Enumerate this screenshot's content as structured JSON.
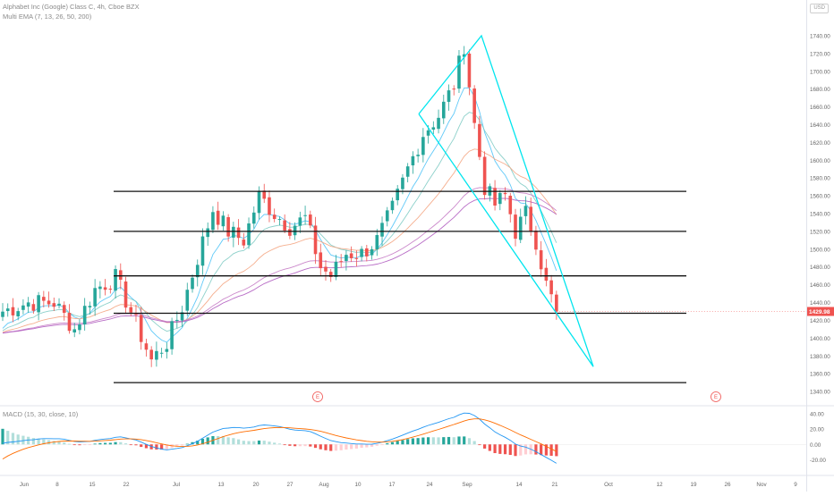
{
  "header": {
    "symbol_line": "Alphabet Inc (Google) Class C, 4h, Cboe BZX",
    "indicator_line": "Multi EMA (7, 13, 26, 50, 200)",
    "currency": "USD"
  },
  "macd_label": "MACD (15, 30, close, 10)",
  "last_price_label": "1429.98",
  "earnings_marker_label": "E",
  "colors": {
    "up": "#26a69a",
    "down": "#ef5350",
    "drawing": "#00e5ee",
    "ema7": "#4fc3f7",
    "ema13": "#80cbc4",
    "ema26": "#f4a582",
    "ema50": "#c57bc5",
    "ema200": "#b05cc0",
    "macd_line": "#2196f3",
    "signal_line": "#ff6d00"
  },
  "chart_data": [
    {
      "type": "candlestick",
      "title": "Alphabet Inc (Google) Class C, 4h, Cboe BZX",
      "y_axis_ticks": [
        1340,
        1360,
        1380,
        1400,
        1420,
        1440,
        1460,
        1480,
        1500,
        1520,
        1540,
        1560,
        1580,
        1600,
        1620,
        1640,
        1660,
        1680,
        1700,
        1720,
        1740
      ],
      "y_axis_tick_labels": [
        "1340.00",
        "1360.00",
        "1380.00",
        "1400.00",
        "1420.00",
        "1440.00",
        "1460.00",
        "1480.00",
        "1500.00",
        "1520.00",
        "1540.00",
        "1560.00",
        "1580.00",
        "1600.00",
        "1620.00",
        "1640.00",
        "1660.00",
        "1680.00",
        "1700.00",
        "1720.00",
        "1740.00"
      ],
      "ylim": [
        1326,
        1752
      ],
      "x_axis_labels": [
        "Jun",
        "8",
        "15",
        "22",
        "Jul",
        "13",
        "20",
        "27",
        "Aug",
        "10",
        "17",
        "24",
        "Sep",
        "14",
        "21",
        "Oct",
        "12",
        "19",
        "26",
        "Nov",
        "9"
      ],
      "last_price": 1429.98,
      "anchors": [
        {
          "i": 0,
          "v": 1430
        },
        {
          "i": 5,
          "v": 1440
        },
        {
          "i": 10,
          "v": 1440
        },
        {
          "i": 14,
          "v": 1410
        },
        {
          "i": 18,
          "v": 1455
        },
        {
          "i": 22,
          "v": 1468
        },
        {
          "i": 25,
          "v": 1430
        },
        {
          "i": 29,
          "v": 1375
        },
        {
          "i": 32,
          "v": 1395
        },
        {
          "i": 35,
          "v": 1435
        },
        {
          "i": 38,
          "v": 1490
        },
        {
          "i": 41,
          "v": 1545
        },
        {
          "i": 44,
          "v": 1520
        },
        {
          "i": 47,
          "v": 1510
        },
        {
          "i": 50,
          "v": 1560
        },
        {
          "i": 53,
          "v": 1540
        },
        {
          "i": 56,
          "v": 1525
        },
        {
          "i": 59,
          "v": 1535
        },
        {
          "i": 62,
          "v": 1480
        },
        {
          "i": 64,
          "v": 1470
        },
        {
          "i": 67,
          "v": 1495
        },
        {
          "i": 70,
          "v": 1495
        },
        {
          "i": 73,
          "v": 1510
        },
        {
          "i": 76,
          "v": 1545
        },
        {
          "i": 79,
          "v": 1590
        },
        {
          "i": 82,
          "v": 1630
        },
        {
          "i": 85,
          "v": 1650
        },
        {
          "i": 88,
          "v": 1685
        },
        {
          "i": 90,
          "v": 1730
        },
        {
          "i": 92,
          "v": 1640
        },
        {
          "i": 94,
          "v": 1570
        },
        {
          "i": 96,
          "v": 1550
        },
        {
          "i": 98,
          "v": 1560
        },
        {
          "i": 100,
          "v": 1520
        },
        {
          "i": 102,
          "v": 1540
        },
        {
          "i": 104,
          "v": 1510
        },
        {
          "i": 106,
          "v": 1460
        },
        {
          "i": 108,
          "v": 1430
        }
      ],
      "horizontal_levels": [
        {
          "price": 1565,
          "from_bar": 22,
          "to_date_x": 767
        },
        {
          "price": 1520,
          "from_bar": 22,
          "to_date_x": 767
        },
        {
          "price": 1470,
          "from_bar": 22,
          "to_date_x": 767
        },
        {
          "price": 1428,
          "from_bar": 22,
          "to_date_x": 767
        },
        {
          "price": 1350,
          "from_bar": 22,
          "to_date_x": 767
        }
      ],
      "ema_periods": [
        7,
        13,
        26,
        50,
        200
      ]
    },
    {
      "type": "macd",
      "title": "MACD (15, 30, close, 10)",
      "y_axis_ticks": [
        40,
        20,
        0,
        -20
      ],
      "y_axis_tick_labels": [
        "40.00",
        "20.00",
        "0.00",
        "-20.00"
      ],
      "ylim": [
        -36,
        46
      ]
    }
  ]
}
